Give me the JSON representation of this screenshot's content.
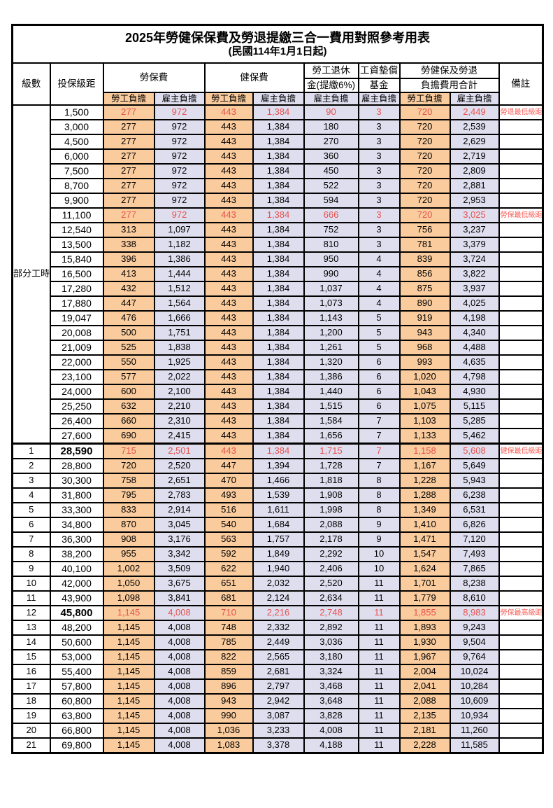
{
  "title": "2025年勞健保保費及勞退提繳三合一費用對照參考用表",
  "subtitle": "(民國114年1月1日起)",
  "header": {
    "level": "級數",
    "bracket": "投保級距",
    "labor_group": "勞保費",
    "health_group": "健保費",
    "pension_line1": "勞工退休",
    "pension_line2": "金(提繳6%)",
    "wage_fund_line1": "工資墊償",
    "wage_fund_line2": "基金",
    "total_line1": "勞健保及勞退",
    "total_line2": "負擔費用合計",
    "remark": "備註",
    "employee": "勞工負擔",
    "employer": "雇主負擔"
  },
  "part_time_label": "部分工時",
  "part_time_rowspan": 23,
  "colors": {
    "employee_bg": "#F9CB9D",
    "employer_bg": "#DFDEEF",
    "highlight_red": "#E8524E",
    "remark_red": "#FB5B55",
    "border": "#000000"
  },
  "rows": [
    {
      "lv": "",
      "b": "1,500",
      "v": [
        "277",
        "972",
        "443",
        "1,384",
        "90",
        "3",
        "720",
        "2,449"
      ],
      "r": "勞退最低級距",
      "red": 1,
      "bold": 0
    },
    {
      "lv": "",
      "b": "3,000",
      "v": [
        "277",
        "972",
        "443",
        "1,384",
        "180",
        "3",
        "720",
        "2,539"
      ],
      "r": "",
      "red": 0,
      "bold": 0
    },
    {
      "lv": "",
      "b": "4,500",
      "v": [
        "277",
        "972",
        "443",
        "1,384",
        "270",
        "3",
        "720",
        "2,629"
      ],
      "r": "",
      "red": 0,
      "bold": 0
    },
    {
      "lv": "",
      "b": "6,000",
      "v": [
        "277",
        "972",
        "443",
        "1,384",
        "360",
        "3",
        "720",
        "2,719"
      ],
      "r": "",
      "red": 0,
      "bold": 0
    },
    {
      "lv": "",
      "b": "7,500",
      "v": [
        "277",
        "972",
        "443",
        "1,384",
        "450",
        "3",
        "720",
        "2,809"
      ],
      "r": "",
      "red": 0,
      "bold": 0
    },
    {
      "lv": "",
      "b": "8,700",
      "v": [
        "277",
        "972",
        "443",
        "1,384",
        "522",
        "3",
        "720",
        "2,881"
      ],
      "r": "",
      "red": 0,
      "bold": 0
    },
    {
      "lv": "",
      "b": "9,900",
      "v": [
        "277",
        "972",
        "443",
        "1,384",
        "594",
        "3",
        "720",
        "2,953"
      ],
      "r": "",
      "red": 0,
      "bold": 0
    },
    {
      "lv": "",
      "b": "11,100",
      "v": [
        "277",
        "972",
        "443",
        "1,384",
        "666",
        "3",
        "720",
        "3,025"
      ],
      "r": "勞保最低級距",
      "red": 1,
      "bold": 0
    },
    {
      "lv": "",
      "b": "12,540",
      "v": [
        "313",
        "1,097",
        "443",
        "1,384",
        "752",
        "3",
        "756",
        "3,237"
      ],
      "r": "",
      "red": 0,
      "bold": 0
    },
    {
      "lv": "",
      "b": "13,500",
      "v": [
        "338",
        "1,182",
        "443",
        "1,384",
        "810",
        "3",
        "781",
        "3,379"
      ],
      "r": "",
      "red": 0,
      "bold": 0
    },
    {
      "lv": "",
      "b": "15,840",
      "v": [
        "396",
        "1,386",
        "443",
        "1,384",
        "950",
        "4",
        "839",
        "3,724"
      ],
      "r": "",
      "red": 0,
      "bold": 0
    },
    {
      "lv": "",
      "b": "16,500",
      "v": [
        "413",
        "1,444",
        "443",
        "1,384",
        "990",
        "4",
        "856",
        "3,822"
      ],
      "r": "",
      "red": 0,
      "bold": 0
    },
    {
      "lv": "",
      "b": "17,280",
      "v": [
        "432",
        "1,512",
        "443",
        "1,384",
        "1,037",
        "4",
        "875",
        "3,937"
      ],
      "r": "",
      "red": 0,
      "bold": 0
    },
    {
      "lv": "",
      "b": "17,880",
      "v": [
        "447",
        "1,564",
        "443",
        "1,384",
        "1,073",
        "4",
        "890",
        "4,025"
      ],
      "r": "",
      "red": 0,
      "bold": 0
    },
    {
      "lv": "",
      "b": "19,047",
      "v": [
        "476",
        "1,666",
        "443",
        "1,384",
        "1,143",
        "5",
        "919",
        "4,198"
      ],
      "r": "",
      "red": 0,
      "bold": 0
    },
    {
      "lv": "",
      "b": "20,008",
      "v": [
        "500",
        "1,751",
        "443",
        "1,384",
        "1,200",
        "5",
        "943",
        "4,340"
      ],
      "r": "",
      "red": 0,
      "bold": 0
    },
    {
      "lv": "",
      "b": "21,009",
      "v": [
        "525",
        "1,838",
        "443",
        "1,384",
        "1,261",
        "5",
        "968",
        "4,488"
      ],
      "r": "",
      "red": 0,
      "bold": 0
    },
    {
      "lv": "",
      "b": "22,000",
      "v": [
        "550",
        "1,925",
        "443",
        "1,384",
        "1,320",
        "6",
        "993",
        "4,635"
      ],
      "r": "",
      "red": 0,
      "bold": 0
    },
    {
      "lv": "",
      "b": "23,100",
      "v": [
        "577",
        "2,022",
        "443",
        "1,384",
        "1,386",
        "6",
        "1,020",
        "4,798"
      ],
      "r": "",
      "red": 0,
      "bold": 0
    },
    {
      "lv": "",
      "b": "24,000",
      "v": [
        "600",
        "2,100",
        "443",
        "1,384",
        "1,440",
        "6",
        "1,043",
        "4,930"
      ],
      "r": "",
      "red": 0,
      "bold": 0
    },
    {
      "lv": "",
      "b": "25,250",
      "v": [
        "632",
        "2,210",
        "443",
        "1,384",
        "1,515",
        "6",
        "1,075",
        "5,115"
      ],
      "r": "",
      "red": 0,
      "bold": 0
    },
    {
      "lv": "",
      "b": "26,400",
      "v": [
        "660",
        "2,310",
        "443",
        "1,384",
        "1,584",
        "7",
        "1,103",
        "5,285"
      ],
      "r": "",
      "red": 0,
      "bold": 0
    },
    {
      "lv": "",
      "b": "27,600",
      "v": [
        "690",
        "2,415",
        "443",
        "1,384",
        "1,656",
        "7",
        "1,133",
        "5,462"
      ],
      "r": "",
      "red": 0,
      "bold": 0
    },
    {
      "lv": "1",
      "b": "28,590",
      "v": [
        "715",
        "2,501",
        "443",
        "1,384",
        "1,715",
        "7",
        "1,158",
        "5,608"
      ],
      "r": "健保最低級距",
      "red": 1,
      "bold": 1
    },
    {
      "lv": "2",
      "b": "28,800",
      "v": [
        "720",
        "2,520",
        "447",
        "1,394",
        "1,728",
        "7",
        "1,167",
        "5,649"
      ],
      "r": "",
      "red": 0,
      "bold": 0
    },
    {
      "lv": "3",
      "b": "30,300",
      "v": [
        "758",
        "2,651",
        "470",
        "1,466",
        "1,818",
        "8",
        "1,228",
        "5,943"
      ],
      "r": "",
      "red": 0,
      "bold": 0
    },
    {
      "lv": "4",
      "b": "31,800",
      "v": [
        "795",
        "2,783",
        "493",
        "1,539",
        "1,908",
        "8",
        "1,288",
        "6,238"
      ],
      "r": "",
      "red": 0,
      "bold": 0
    },
    {
      "lv": "5",
      "b": "33,300",
      "v": [
        "833",
        "2,914",
        "516",
        "1,611",
        "1,998",
        "8",
        "1,349",
        "6,531"
      ],
      "r": "",
      "red": 0,
      "bold": 0
    },
    {
      "lv": "6",
      "b": "34,800",
      "v": [
        "870",
        "3,045",
        "540",
        "1,684",
        "2,088",
        "9",
        "1,410",
        "6,826"
      ],
      "r": "",
      "red": 0,
      "bold": 0
    },
    {
      "lv": "7",
      "b": "36,300",
      "v": [
        "908",
        "3,176",
        "563",
        "1,757",
        "2,178",
        "9",
        "1,471",
        "7,120"
      ],
      "r": "",
      "red": 0,
      "bold": 0
    },
    {
      "lv": "8",
      "b": "38,200",
      "v": [
        "955",
        "3,342",
        "592",
        "1,849",
        "2,292",
        "10",
        "1,547",
        "7,493"
      ],
      "r": "",
      "red": 0,
      "bold": 0
    },
    {
      "lv": "9",
      "b": "40,100",
      "v": [
        "1,002",
        "3,509",
        "622",
        "1,940",
        "2,406",
        "10",
        "1,624",
        "7,865"
      ],
      "r": "",
      "red": 0,
      "bold": 0
    },
    {
      "lv": "10",
      "b": "42,000",
      "v": [
        "1,050",
        "3,675",
        "651",
        "2,032",
        "2,520",
        "11",
        "1,701",
        "8,238"
      ],
      "r": "",
      "red": 0,
      "bold": 0
    },
    {
      "lv": "11",
      "b": "43,900",
      "v": [
        "1,098",
        "3,841",
        "681",
        "2,124",
        "2,634",
        "11",
        "1,779",
        "8,610"
      ],
      "r": "",
      "red": 0,
      "bold": 0
    },
    {
      "lv": "12",
      "b": "45,800",
      "v": [
        "1,145",
        "4,008",
        "710",
        "2,216",
        "2,748",
        "11",
        "1,855",
        "8,983"
      ],
      "r": "勞保最高級距",
      "red": 1,
      "bold": 1
    },
    {
      "lv": "13",
      "b": "48,200",
      "v": [
        "1,145",
        "4,008",
        "748",
        "2,332",
        "2,892",
        "11",
        "1,893",
        "9,243"
      ],
      "r": "",
      "red": 0,
      "bold": 0
    },
    {
      "lv": "14",
      "b": "50,600",
      "v": [
        "1,145",
        "4,008",
        "785",
        "2,449",
        "3,036",
        "11",
        "1,930",
        "9,504"
      ],
      "r": "",
      "red": 0,
      "bold": 0
    },
    {
      "lv": "15",
      "b": "53,000",
      "v": [
        "1,145",
        "4,008",
        "822",
        "2,565",
        "3,180",
        "11",
        "1,967",
        "9,764"
      ],
      "r": "",
      "red": 0,
      "bold": 0
    },
    {
      "lv": "16",
      "b": "55,400",
      "v": [
        "1,145",
        "4,008",
        "859",
        "2,681",
        "3,324",
        "11",
        "2,004",
        "10,024"
      ],
      "r": "",
      "red": 0,
      "bold": 0
    },
    {
      "lv": "17",
      "b": "57,800",
      "v": [
        "1,145",
        "4,008",
        "896",
        "2,797",
        "3,468",
        "11",
        "2,041",
        "10,284"
      ],
      "r": "",
      "red": 0,
      "bold": 0
    },
    {
      "lv": "18",
      "b": "60,800",
      "v": [
        "1,145",
        "4,008",
        "943",
        "2,942",
        "3,648",
        "11",
        "2,088",
        "10,609"
      ],
      "r": "",
      "red": 0,
      "bold": 0
    },
    {
      "lv": "19",
      "b": "63,800",
      "v": [
        "1,145",
        "4,008",
        "990",
        "3,087",
        "3,828",
        "11",
        "2,135",
        "10,934"
      ],
      "r": "",
      "red": 0,
      "bold": 0
    },
    {
      "lv": "20",
      "b": "66,800",
      "v": [
        "1,145",
        "4,008",
        "1,036",
        "3,233",
        "4,008",
        "11",
        "2,181",
        "11,260"
      ],
      "r": "",
      "red": 0,
      "bold": 0
    },
    {
      "lv": "21",
      "b": "69,800",
      "v": [
        "1,145",
        "4,008",
        "1,083",
        "3,378",
        "4,188",
        "11",
        "2,228",
        "11,585"
      ],
      "r": "",
      "red": 0,
      "bold": 0
    }
  ]
}
